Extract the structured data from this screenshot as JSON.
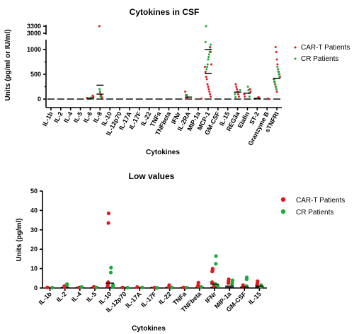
{
  "chart_data": [
    {
      "type": "scatter",
      "title": "Cytokines in CSF",
      "xlabel": "Cytokines",
      "ylabel": "Units (pg/ml or IU/ml)",
      "y_ticks": [
        "0",
        "500",
        "1000",
        "3000",
        "3300"
      ],
      "y_axis_break": [
        1150,
        2900
      ],
      "categories": [
        "IL-1b",
        "IL-2",
        "IL-4",
        "IL-5",
        "IL-6",
        "IL-8",
        "IL-10",
        "IL-12p70",
        "IL-17A",
        "IL-17F",
        "IL-22",
        "TNFa",
        "TNFbeta",
        "IFNr",
        "IL-2RA",
        "MIP-1a",
        "MCP-1",
        "GM-CSF",
        "IL-15",
        "REG3a",
        "Elafin",
        "ST-2",
        "Granzyme B",
        "sTNFRI"
      ],
      "legend": {
        "position": "right",
        "labels": [
          "CAR-T Patients",
          "CR Patients"
        ]
      },
      "colors": {
        "car_t": "#e8141c",
        "cr": "#1aaa35"
      },
      "series": [
        {
          "name": "CAR-T Patients",
          "points": [
            [
              "IL-6",
              20
            ],
            [
              "IL-6",
              40
            ],
            [
              "IL-6",
              70
            ],
            [
              "IL-8",
              30
            ],
            [
              "IL-8",
              60
            ],
            [
              "IL-8",
              90
            ],
            [
              "IL-8",
              140
            ],
            [
              "IL-8",
              3300
            ],
            [
              "IL-2RA",
              10
            ],
            [
              "IL-2RA",
              30
            ],
            [
              "IL-2RA",
              80
            ],
            [
              "IL-2RA",
              150
            ],
            [
              "MIP-1a",
              10
            ],
            [
              "MCP-1",
              50
            ],
            [
              "MCP-1",
              100
            ],
            [
              "MCP-1",
              150
            ],
            [
              "MCP-1",
              200
            ],
            [
              "MCP-1",
              250
            ],
            [
              "MCP-1",
              300
            ],
            [
              "MCP-1",
              400
            ],
            [
              "MCP-1",
              450
            ],
            [
              "MCP-1",
              550
            ],
            [
              "MCP-1",
              650
            ],
            [
              "MCP-1",
              700
            ],
            [
              "MCP-1",
              950
            ],
            [
              "MCP-1",
              1050
            ],
            [
              "REG3a",
              50
            ],
            [
              "REG3a",
              100
            ],
            [
              "REG3a",
              150
            ],
            [
              "REG3a",
              200
            ],
            [
              "REG3a",
              250
            ],
            [
              "REG3a",
              300
            ],
            [
              "Elafin",
              50
            ],
            [
              "Elafin",
              100
            ],
            [
              "Elafin",
              150
            ],
            [
              "Elafin",
              200
            ],
            [
              "ST-2",
              20
            ],
            [
              "ST-2",
              40
            ],
            [
              "Granzyme B",
              10
            ],
            [
              "sTNFRI",
              150
            ],
            [
              "sTNFRI",
              200
            ],
            [
              "sTNFRI",
              250
            ],
            [
              "sTNFRI",
              300
            ],
            [
              "sTNFRI",
              350
            ],
            [
              "sTNFRI",
              400
            ],
            [
              "sTNFRI",
              450
            ],
            [
              "sTNFRI",
              500
            ],
            [
              "sTNFRI",
              550
            ],
            [
              "sTNFRI",
              600
            ],
            [
              "sTNFRI",
              700
            ],
            [
              "sTNFRI",
              800
            ],
            [
              "sTNFRI",
              950
            ],
            [
              "sTNFRI",
              1050
            ]
          ]
        },
        {
          "name": "CR Patients",
          "points": [
            [
              "IL-6",
              10
            ],
            [
              "IL-6",
              30
            ],
            [
              "IL-8",
              50
            ],
            [
              "IL-8",
              150
            ],
            [
              "IL-8",
              200
            ],
            [
              "IL-2RA",
              40
            ],
            [
              "IL-2RA",
              80
            ],
            [
              "MCP-1",
              3300
            ],
            [
              "MCP-1",
              1150
            ],
            [
              "MCP-1",
              1100
            ],
            [
              "MCP-1",
              1000
            ],
            [
              "MCP-1",
              950
            ],
            [
              "MCP-1",
              900
            ],
            [
              "MCP-1",
              850
            ],
            [
              "MCP-1",
              800
            ],
            [
              "MCP-1",
              700
            ],
            [
              "MCP-1",
              650
            ],
            [
              "MCP-1",
              600
            ],
            [
              "REG3a",
              40
            ],
            [
              "REG3a",
              100
            ],
            [
              "REG3a",
              180
            ],
            [
              "Elafin",
              50
            ],
            [
              "Elafin",
              120
            ],
            [
              "Elafin",
              180
            ],
            [
              "Elafin",
              250
            ],
            [
              "ST-2",
              10
            ],
            [
              "sTNFRI",
              200
            ],
            [
              "sTNFRI",
              250
            ],
            [
              "sTNFRI",
              300
            ],
            [
              "sTNFRI",
              350
            ],
            [
              "sTNFRI",
              400
            ],
            [
              "sTNFRI",
              450
            ],
            [
              "sTNFRI",
              500
            ],
            [
              "sTNFRI",
              550
            ],
            [
              "sTNFRI",
              600
            ],
            [
              "sTNFRI",
              650
            ]
          ]
        }
      ],
      "medians": [
        [
          "IL-6",
          20
        ],
        [
          "IL-8",
          100
        ],
        [
          "IL-8",
          280
        ],
        [
          "IL-2RA",
          40
        ],
        [
          "MCP-1",
          1000
        ],
        [
          "MCP-1",
          520
        ],
        [
          "REG3a",
          140
        ],
        [
          "Elafin",
          120
        ],
        [
          "ST-2",
          15
        ],
        [
          "sTNFRI",
          420
        ]
      ]
    },
    {
      "type": "scatter",
      "title": "Low values",
      "xlabel": "Cytokines",
      "ylabel": "Units (pg/ml)",
      "ylim": [
        0,
        50
      ],
      "y_ticks": [
        "0",
        "10",
        "20",
        "30",
        "40",
        "50"
      ],
      "categories": [
        "IL-1b",
        "IL-2",
        "IL-4",
        "IL-5",
        "IL-10",
        "IL-12p70",
        "IL-17A",
        "IL-17F",
        "IL-22",
        "TNFa",
        "TNFbeta",
        "IFNr",
        "MIP-1a",
        "GM-CSF",
        "IL-15"
      ],
      "legend": {
        "position": "right",
        "labels": [
          "CAR-T Patients",
          "CR Patients"
        ]
      },
      "colors": {
        "car_t": "#e8141c",
        "cr": "#1aaa35"
      },
      "series": [
        {
          "name": "CAR-T Patients",
          "points": [
            [
              "IL-1b",
              0.3
            ],
            [
              "IL-2",
              0.5
            ],
            [
              "IL-2",
              1
            ],
            [
              "IL-4",
              0.3
            ],
            [
              "IL-5",
              0.6
            ],
            [
              "IL-10",
              38.5
            ],
            [
              "IL-10",
              33.5
            ],
            [
              "IL-10",
              3
            ],
            [
              "IL-10",
              2
            ],
            [
              "IL-10",
              1
            ],
            [
              "IL-12p70",
              0.3
            ],
            [
              "IL-17A",
              0.5
            ],
            [
              "IL-17F",
              0.2
            ],
            [
              "IL-22",
              1.5
            ],
            [
              "IL-22",
              0.5
            ],
            [
              "TNFa",
              0.3
            ],
            [
              "TNFbeta",
              2.8
            ],
            [
              "TNFbeta",
              1.5
            ],
            [
              "TNFbeta",
              0.8
            ],
            [
              "IFNr",
              10
            ],
            [
              "IFNr",
              9
            ],
            [
              "IFNr",
              8.5
            ],
            [
              "IFNr",
              3
            ],
            [
              "IFNr",
              2
            ],
            [
              "IFNr",
              1
            ],
            [
              "MIP-1a",
              4.5
            ],
            [
              "MIP-1a",
              3.5
            ],
            [
              "MIP-1a",
              2.5
            ],
            [
              "GM-CSF",
              1.5
            ],
            [
              "GM-CSF",
              0.5
            ],
            [
              "IL-15",
              3.5
            ],
            [
              "IL-15",
              2.5
            ],
            [
              "IL-15",
              1.5
            ]
          ]
        },
        {
          "name": "CR Patients",
          "points": [
            [
              "IL-1b",
              0.2
            ],
            [
              "IL-2",
              2
            ],
            [
              "IL-2",
              1.5
            ],
            [
              "IL-4",
              0.5
            ],
            [
              "IL-5",
              0.3
            ],
            [
              "IL-10",
              10.5
            ],
            [
              "IL-10",
              8
            ],
            [
              "IL-10",
              1.5
            ],
            [
              "IL-10",
              0.5
            ],
            [
              "IL-12p70",
              0.2
            ],
            [
              "IL-17A",
              0.3
            ],
            [
              "IL-17F",
              0.1
            ],
            [
              "IL-22",
              0.3
            ],
            [
              "TNFa",
              0.2
            ],
            [
              "TNFbeta",
              0.5
            ],
            [
              "IFNr",
              16.5
            ],
            [
              "IFNr",
              12.5
            ],
            [
              "IFNr",
              2
            ],
            [
              "IFNr",
              1
            ],
            [
              "MIP-1a",
              4
            ],
            [
              "MIP-1a",
              3
            ],
            [
              "MIP-1a",
              2
            ],
            [
              "GM-CSF",
              5.5
            ],
            [
              "GM-CSF",
              4.5
            ],
            [
              "GM-CSF",
              1
            ],
            [
              "IL-15",
              1.5
            ],
            [
              "IL-15",
              0.5
            ]
          ]
        }
      ],
      "medians": [
        [
          "IL-10",
          2.5
        ],
        [
          "IFNr",
          2
        ],
        [
          "MIP-1a",
          1
        ],
        [
          "GM-CSF",
          0.5
        ],
        [
          "IL-15",
          1
        ]
      ]
    }
  ]
}
